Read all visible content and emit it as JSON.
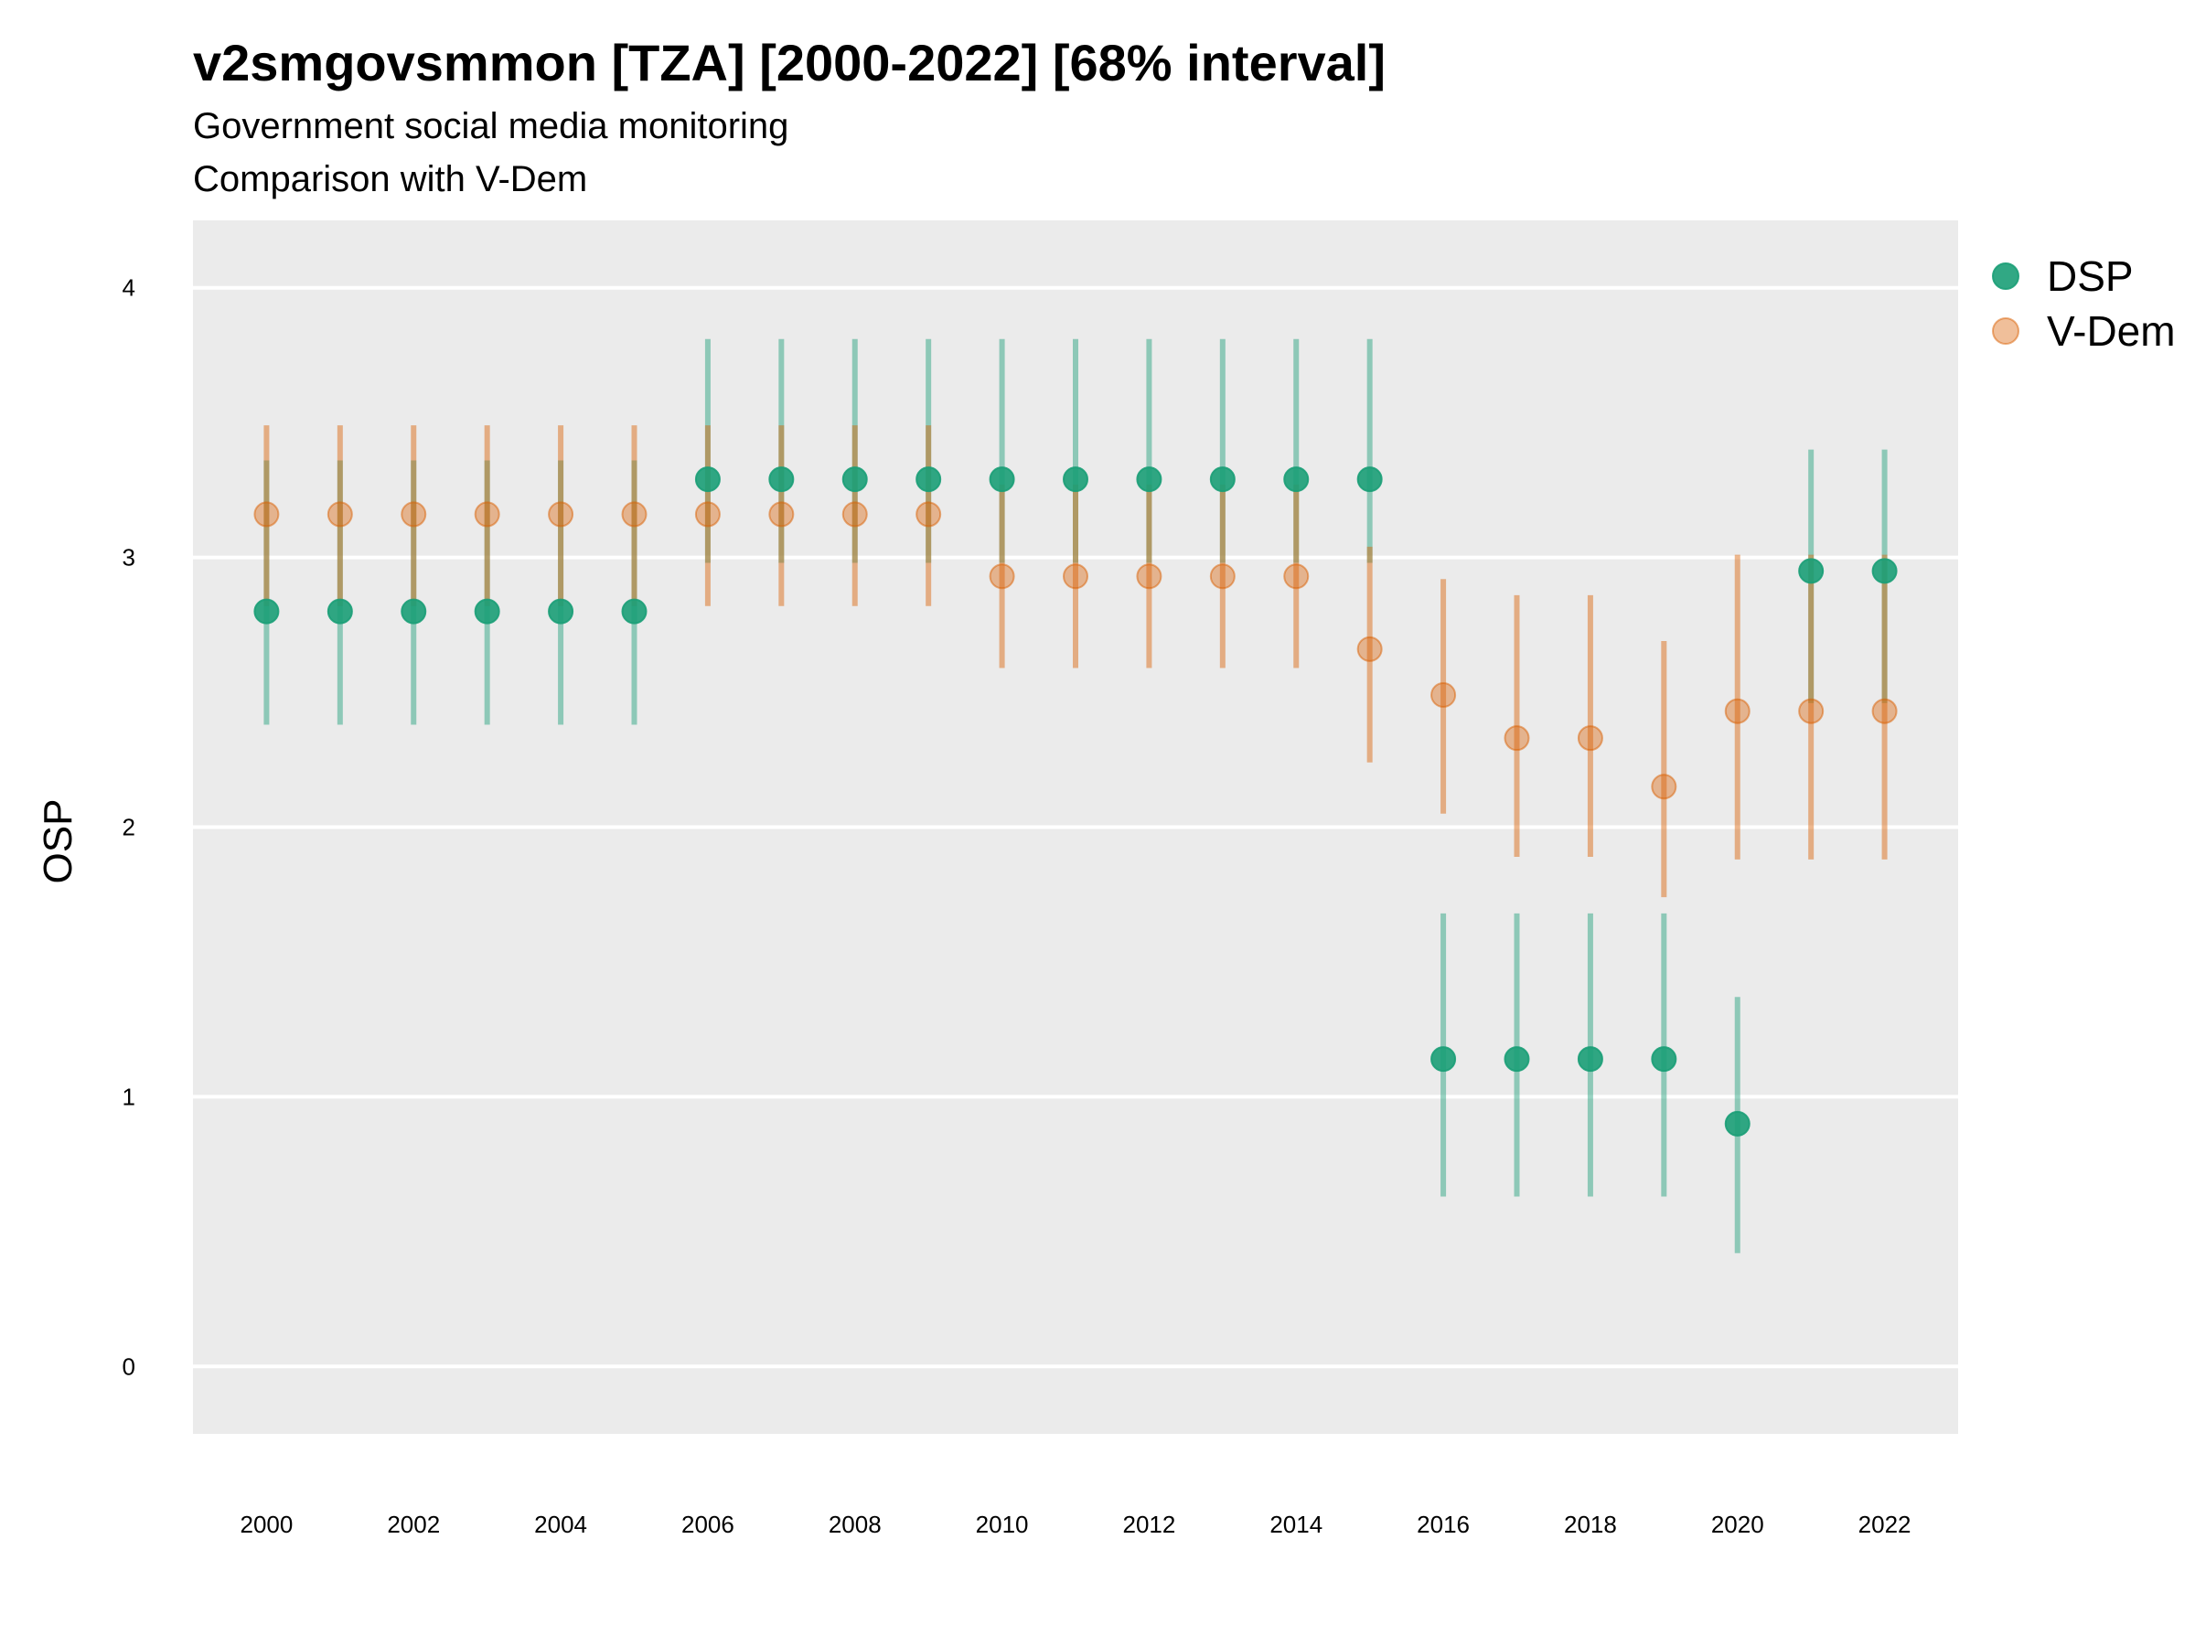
{
  "chart_data": {
    "type": "scatter",
    "title": "v2smgovsmmon [TZA] [2000-2022] [68% interval]",
    "subtitle": "Government social media monitoring",
    "subtitle2": "Comparison with V-Dem",
    "xlabel": "",
    "ylabel": "OSP",
    "ylim": [
      -0.25,
      4.25
    ],
    "yticks": [
      0,
      1,
      2,
      3,
      4
    ],
    "xlim": [
      1999,
      2023
    ],
    "xticks": [
      2000,
      2002,
      2004,
      2006,
      2008,
      2010,
      2012,
      2014,
      2016,
      2018,
      2020,
      2022
    ],
    "x": [
      2000,
      2001,
      2002,
      2003,
      2004,
      2005,
      2006,
      2007,
      2008,
      2009,
      2010,
      2011,
      2012,
      2013,
      2014,
      2015,
      2016,
      2017,
      2018,
      2019,
      2020,
      2021,
      2022
    ],
    "series": [
      {
        "name": "DSP",
        "color": "#1b9e77",
        "values": [
          2.8,
          2.8,
          2.8,
          2.8,
          2.8,
          2.8,
          3.29,
          3.29,
          3.29,
          3.29,
          3.29,
          3.29,
          3.29,
          3.29,
          3.29,
          3.29,
          1.14,
          1.14,
          1.14,
          1.14,
          0.9,
          2.95,
          2.95
        ],
        "lower": [
          2.38,
          2.38,
          2.38,
          2.38,
          2.38,
          2.38,
          2.98,
          2.98,
          2.98,
          2.98,
          2.98,
          2.98,
          2.98,
          2.98,
          2.98,
          2.98,
          0.63,
          0.63,
          0.63,
          0.63,
          0.42,
          2.46,
          2.46
        ],
        "upper": [
          3.36,
          3.36,
          3.36,
          3.36,
          3.36,
          3.36,
          3.81,
          3.81,
          3.81,
          3.81,
          3.81,
          3.81,
          3.81,
          3.81,
          3.81,
          3.81,
          1.68,
          1.68,
          1.68,
          1.68,
          1.37,
          3.4,
          3.4
        ]
      },
      {
        "name": "V-Dem",
        "color": "#d95f02",
        "values": [
          3.16,
          3.16,
          3.16,
          3.16,
          3.16,
          3.16,
          3.16,
          3.16,
          3.16,
          3.16,
          2.93,
          2.93,
          2.93,
          2.93,
          2.93,
          2.66,
          2.49,
          2.33,
          2.33,
          2.15,
          2.43,
          2.43,
          2.43
        ],
        "lower": [
          2.82,
          2.82,
          2.82,
          2.82,
          2.82,
          2.82,
          2.82,
          2.82,
          2.82,
          2.82,
          2.59,
          2.59,
          2.59,
          2.59,
          2.59,
          2.24,
          2.05,
          1.89,
          1.89,
          1.74,
          1.88,
          1.88,
          1.88
        ],
        "upper": [
          3.49,
          3.49,
          3.49,
          3.49,
          3.49,
          3.49,
          3.49,
          3.49,
          3.49,
          3.49,
          3.27,
          3.27,
          3.27,
          3.27,
          3.27,
          3.04,
          2.92,
          2.86,
          2.86,
          2.69,
          3.01,
          3.01,
          3.01
        ]
      }
    ],
    "legend": "right",
    "grid": true
  }
}
